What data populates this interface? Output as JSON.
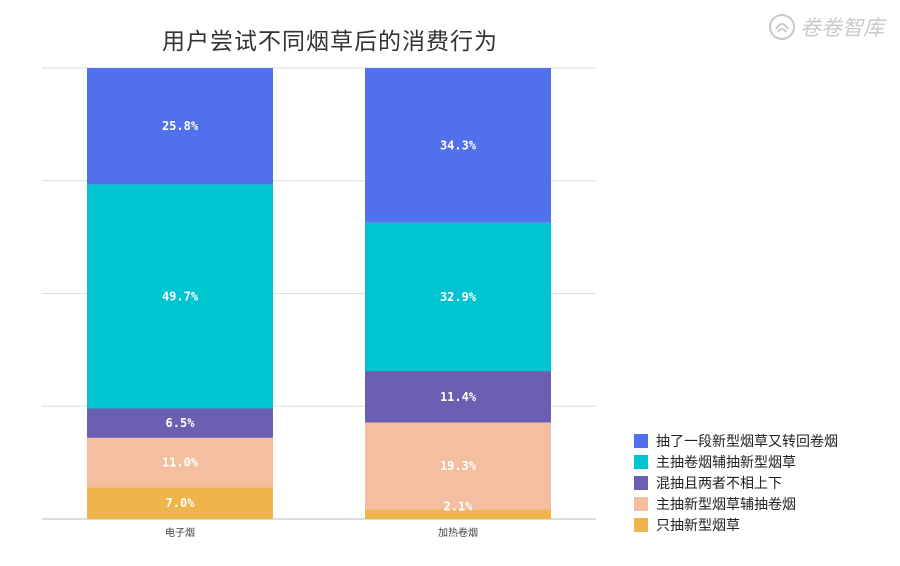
{
  "page": {
    "title": "用户尝试不同烟草后的消费行为",
    "watermark": "卷卷智库"
  },
  "chart_data": {
    "type": "bar",
    "stacked": true,
    "categories": [
      "电子烟",
      "加热卷烟"
    ],
    "ylim": [
      0,
      100
    ],
    "grid": true,
    "legend_position": "bottom-right",
    "series": [
      {
        "name": "只抽新型烟草",
        "color": "#f0b44c",
        "values": [
          7.0,
          2.1
        ],
        "labels": [
          "7.0%",
          "2.1%"
        ]
      },
      {
        "name": "主抽新型烟草辅抽卷烟",
        "color": "#f3bfa0",
        "values": [
          11.0,
          19.3
        ],
        "labels": [
          "11.0%",
          "19.3%"
        ]
      },
      {
        "name": "混抽且两者不相上下",
        "color": "#6a5fb0",
        "values": [
          6.5,
          11.4
        ],
        "labels": [
          "6.5%",
          "11.4%"
        ]
      },
      {
        "name": "主抽卷烟辅抽新型烟草",
        "color": "#00c5d0",
        "values": [
          49.7,
          32.9
        ],
        "labels": [
          "49.7%",
          "32.9%"
        ]
      },
      {
        "name": "抽了一段新型烟草又转回卷烟",
        "color": "#5170ec",
        "values": [
          25.8,
          34.3
        ],
        "labels": [
          "25.8%",
          "34.3%"
        ]
      }
    ],
    "legend_order": [
      "抽了一段新型烟草又转回卷烟",
      "主抽卷烟辅抽新型烟草",
      "混抽且两者不相上下",
      "主抽新型烟草辅抽卷烟",
      "只抽新型烟草"
    ]
  }
}
